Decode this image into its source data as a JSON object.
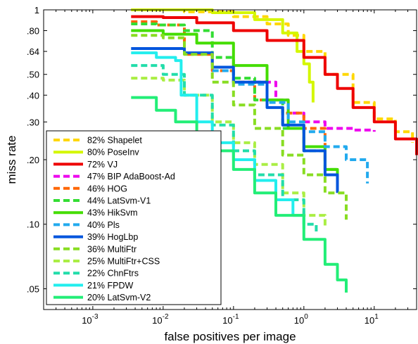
{
  "chart_data": {
    "type": "line",
    "xlabel": "false positives per image",
    "ylabel": "miss rate",
    "xscale": "log",
    "yscale": "log",
    "xlim": [
      0.0002,
      40
    ],
    "ylim": [
      0.04,
      1
    ],
    "x_ticks": [
      {
        "value": 0.001,
        "base": "10",
        "exp": "-3"
      },
      {
        "value": 0.01,
        "base": "10",
        "exp": "-2"
      },
      {
        "value": 0.1,
        "base": "10",
        "exp": "-1"
      },
      {
        "value": 1,
        "base": "10",
        "exp": "0"
      },
      {
        "value": 10,
        "base": "10",
        "exp": "1"
      }
    ],
    "y_ticks": [
      {
        "value": 1,
        "label": "1"
      },
      {
        "value": 0.8,
        "label": ".80"
      },
      {
        "value": 0.64,
        "label": ".64"
      },
      {
        "value": 0.5,
        "label": ".50"
      },
      {
        "value": 0.4,
        "label": ".40"
      },
      {
        "value": 0.3,
        "label": ".30"
      },
      {
        "value": 0.2,
        "label": ".20"
      },
      {
        "value": 0.1,
        "label": ".10"
      },
      {
        "value": 0.05,
        "label": ".05"
      }
    ],
    "grid": false,
    "legend_position": "bottom-left",
    "series": [
      {
        "name": "82% Shapelet",
        "color": "#ffd700",
        "dash": true,
        "points": [
          [
            0.0035,
            1.0
          ],
          [
            0.02,
            0.98
          ],
          [
            0.1,
            0.93
          ],
          [
            0.3,
            0.86
          ],
          [
            0.6,
            0.76
          ],
          [
            1.0,
            0.64
          ],
          [
            2.0,
            0.5
          ],
          [
            5.0,
            0.37
          ],
          [
            10.0,
            0.31
          ],
          [
            20.0,
            0.27
          ],
          [
            35.0,
            0.24
          ]
        ]
      },
      {
        "name": "80% PoseInv",
        "color": "#d4f700",
        "dash": false,
        "points": [
          [
            0.0035,
            1.0
          ],
          [
            0.01,
            1.0
          ],
          [
            0.05,
            0.97
          ],
          [
            0.2,
            0.9
          ],
          [
            0.5,
            0.78
          ],
          [
            0.8,
            0.64
          ],
          [
            1.0,
            0.56
          ],
          [
            1.2,
            0.46
          ],
          [
            1.35,
            0.37
          ]
        ]
      },
      {
        "name": "72% VJ",
        "color": "#ee0000",
        "dash": false,
        "points": [
          [
            0.0035,
            0.93
          ],
          [
            0.01,
            0.92
          ],
          [
            0.03,
            0.87
          ],
          [
            0.1,
            0.8
          ],
          [
            0.3,
            0.72
          ],
          [
            1.0,
            0.6
          ],
          [
            2.0,
            0.5
          ],
          [
            3.0,
            0.43
          ],
          [
            5.0,
            0.35
          ],
          [
            10.0,
            0.3
          ],
          [
            20.0,
            0.25
          ],
          [
            40.0,
            0.21
          ]
        ]
      },
      {
        "name": "47% BIP AdaBoost-Ad",
        "color": "#ee00ee",
        "dash": true,
        "points": [
          [
            0.2,
            0.46
          ],
          [
            0.4,
            0.38
          ],
          [
            0.6,
            0.33
          ],
          [
            1.0,
            0.3
          ],
          [
            2.0,
            0.28
          ],
          [
            5.0,
            0.275
          ],
          [
            10.0,
            0.27
          ]
        ]
      },
      {
        "name": "46% HOG",
        "color": "#ff6600",
        "dash": true,
        "points": [
          [
            0.0035,
            0.88
          ],
          [
            0.008,
            0.85
          ],
          [
            0.02,
            0.62
          ],
          [
            0.05,
            0.52
          ],
          [
            0.1,
            0.46
          ],
          [
            0.2,
            0.38
          ],
          [
            0.5,
            0.33
          ],
          [
            1.0,
            0.28
          ],
          [
            2.0,
            0.2
          ]
        ]
      },
      {
        "name": "44% LatSvm-V1",
        "color": "#33dd33",
        "dash": true,
        "points": [
          [
            0.0035,
            0.86
          ],
          [
            0.008,
            0.85
          ],
          [
            0.02,
            0.8
          ],
          [
            0.05,
            0.6
          ],
          [
            0.1,
            0.48
          ],
          [
            0.2,
            0.38
          ],
          [
            0.5,
            0.28
          ],
          [
            1.0,
            0.22
          ],
          [
            2.0,
            0.18
          ],
          [
            3.0,
            0.155
          ]
        ]
      },
      {
        "name": "43% HikSvm",
        "color": "#44dd00",
        "dash": false,
        "points": [
          [
            0.0035,
            0.8
          ],
          [
            0.01,
            0.77
          ],
          [
            0.03,
            0.7
          ],
          [
            0.1,
            0.55
          ],
          [
            0.3,
            0.38
          ],
          [
            0.6,
            0.28
          ],
          [
            1.0,
            0.23
          ],
          [
            2.0,
            0.18
          ],
          [
            3.0,
            0.15
          ]
        ]
      },
      {
        "name": "40% Pls",
        "color": "#22aaee",
        "dash": true,
        "points": [
          [
            0.05,
            0.52
          ],
          [
            0.1,
            0.45
          ],
          [
            0.3,
            0.37
          ],
          [
            0.6,
            0.3
          ],
          [
            1.0,
            0.27
          ],
          [
            2.0,
            0.23
          ],
          [
            4.0,
            0.2
          ],
          [
            8.0,
            0.155
          ]
        ]
      },
      {
        "name": "39% HogLbp",
        "color": "#0055dd",
        "dash": false,
        "points": [
          [
            0.0035,
            0.66
          ],
          [
            0.008,
            0.66
          ],
          [
            0.02,
            0.63
          ],
          [
            0.05,
            0.54
          ],
          [
            0.1,
            0.46
          ],
          [
            0.3,
            0.35
          ],
          [
            0.5,
            0.29
          ],
          [
            1.0,
            0.22
          ],
          [
            2.0,
            0.17
          ],
          [
            3.0,
            0.14
          ]
        ]
      },
      {
        "name": "36% MultiFtr",
        "color": "#88dd22",
        "dash": true,
        "points": [
          [
            0.0035,
            0.76
          ],
          [
            0.01,
            0.74
          ],
          [
            0.02,
            0.62
          ],
          [
            0.05,
            0.46
          ],
          [
            0.1,
            0.36
          ],
          [
            0.2,
            0.28
          ],
          [
            0.5,
            0.21
          ],
          [
            1.0,
            0.17
          ],
          [
            2.0,
            0.14
          ],
          [
            4.0,
            0.105
          ]
        ]
      },
      {
        "name": "25% MultiFtr+CSS",
        "color": "#aaee44",
        "dash": true,
        "points": [
          [
            0.0035,
            0.48
          ],
          [
            0.01,
            0.47
          ],
          [
            0.02,
            0.4
          ],
          [
            0.05,
            0.3
          ],
          [
            0.1,
            0.24
          ],
          [
            0.2,
            0.19
          ],
          [
            0.5,
            0.14
          ],
          [
            1.0,
            0.11
          ],
          [
            2.0,
            0.095
          ]
        ]
      },
      {
        "name": "22% ChnFtrs",
        "color": "#22ddaa",
        "dash": true,
        "points": [
          [
            0.0035,
            0.55
          ],
          [
            0.01,
            0.5
          ],
          [
            0.02,
            0.4
          ],
          [
            0.05,
            0.29
          ],
          [
            0.1,
            0.22
          ],
          [
            0.2,
            0.17
          ],
          [
            0.5,
            0.13
          ],
          [
            1.0,
            0.1
          ],
          [
            1.5,
            0.09
          ]
        ]
      },
      {
        "name": "21% FPDW",
        "color": "#22eeee",
        "dash": false,
        "points": [
          [
            0.0035,
            0.63
          ],
          [
            0.008,
            0.6
          ],
          [
            0.015,
            0.58
          ],
          [
            0.018,
            0.4
          ],
          [
            0.03,
            0.3
          ],
          [
            0.05,
            0.24
          ],
          [
            0.1,
            0.2
          ],
          [
            0.2,
            0.16
          ],
          [
            0.4,
            0.13
          ],
          [
            0.7,
            0.11
          ],
          [
            1.0,
            0.095
          ]
        ]
      },
      {
        "name": "20% LatSvm-V2",
        "color": "#22ee77",
        "dash": false,
        "points": [
          [
            0.0035,
            0.39
          ],
          [
            0.008,
            0.34
          ],
          [
            0.015,
            0.3
          ],
          [
            0.03,
            0.25
          ],
          [
            0.05,
            0.22
          ],
          [
            0.1,
            0.18
          ],
          [
            0.2,
            0.14
          ],
          [
            0.4,
            0.11
          ],
          [
            1.0,
            0.085
          ],
          [
            2.0,
            0.065
          ],
          [
            3.0,
            0.055
          ],
          [
            4.0,
            0.048
          ]
        ]
      }
    ]
  }
}
